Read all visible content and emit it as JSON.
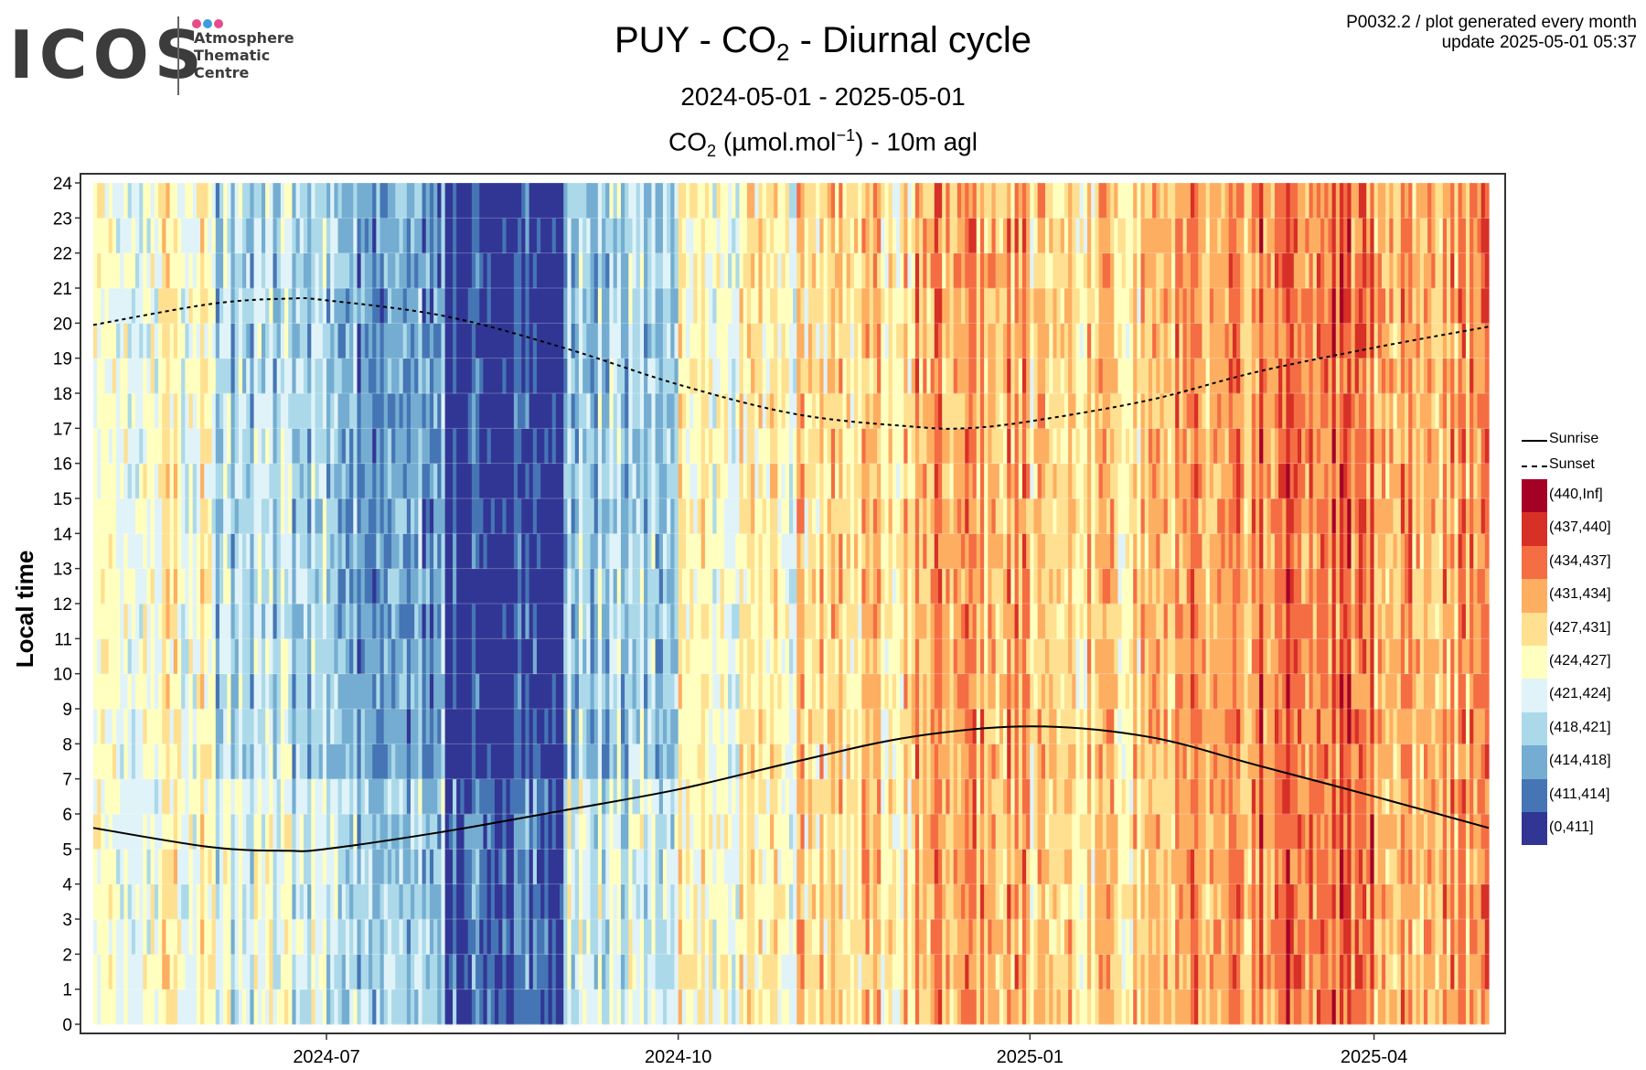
{
  "logo": {
    "text": "ICOS",
    "lines": [
      "Atmosphere",
      "Thematic",
      "Centre"
    ],
    "dot_colors": [
      "#e84a8a",
      "#3a9ee0",
      "#e84a8a"
    ]
  },
  "header": {
    "title": "PUY - CO2 - Diurnal cycle",
    "period": "2024-05-01 - 2025-05-01",
    "measure": "CO2 (µmol.mol-1) - 10m agl",
    "meta_line1": "P0032.2 / plot generated every month",
    "meta_line2": "update  2025-05-01 05:37"
  },
  "chart_data": {
    "type": "heatmap",
    "title": "PUY - CO2 - Diurnal cycle",
    "subtitle": "2024-05-01 - 2025-05-01",
    "xlabel": "",
    "ylabel": "Local time",
    "x_range": [
      "2024-05-01",
      "2025-05-01"
    ],
    "x_ticks": [
      "2024-07",
      "2024-10",
      "2025-01",
      "2025-04"
    ],
    "x_tick_dates": [
      "2024-07-01",
      "2024-10-01",
      "2025-01-01",
      "2025-04-01"
    ],
    "y_range": [
      0,
      24
    ],
    "y_ticks": [
      0,
      1,
      2,
      3,
      4,
      5,
      6,
      7,
      8,
      9,
      10,
      11,
      12,
      13,
      14,
      15,
      16,
      17,
      18,
      19,
      20,
      21,
      22,
      23,
      24
    ],
    "grid": true,
    "legend_position": "right",
    "classes": [
      {
        "label": "(440,Inf]",
        "color": "#a50026"
      },
      {
        "label": "(437,440]",
        "color": "#d73027"
      },
      {
        "label": "(434,437]",
        "color": "#f46d43"
      },
      {
        "label": "(431,434]",
        "color": "#fdae61"
      },
      {
        "label": "(427,431]",
        "color": "#fee090"
      },
      {
        "label": "(424,427]",
        "color": "#ffffbf"
      },
      {
        "label": "(421,424]",
        "color": "#e0f3f8"
      },
      {
        "label": "(418,421]",
        "color": "#abd9e9"
      },
      {
        "label": "(414,418]",
        "color": "#74add1"
      },
      {
        "label": "(411,414]",
        "color": "#4575b4"
      },
      {
        "label": "(0,411]",
        "color": "#313695"
      }
    ],
    "monthly_dominant_class": [
      {
        "month": "2024-05",
        "class": "(424,427]"
      },
      {
        "month": "2024-06",
        "class": "(418,421]"
      },
      {
        "month": "2024-07",
        "class": "(414,418]"
      },
      {
        "month": "2024-08",
        "class": "(0,411]"
      },
      {
        "month": "2024-09",
        "class": "(418,421]"
      },
      {
        "month": "2024-10",
        "class": "(424,427]"
      },
      {
        "month": "2024-11",
        "class": "(427,431]"
      },
      {
        "month": "2024-12",
        "class": "(431,434]"
      },
      {
        "month": "2025-01",
        "class": "(427,431]"
      },
      {
        "month": "2025-02",
        "class": "(431,434]"
      },
      {
        "month": "2025-03",
        "class": "(434,437]"
      },
      {
        "month": "2025-04",
        "class": "(431,434]"
      }
    ],
    "series": [
      {
        "name": "Sunrise",
        "style": "solid",
        "x": [
          "2024-05-01",
          "2024-06-01",
          "2024-06-21",
          "2024-07-01",
          "2024-08-01",
          "2024-09-01",
          "2024-10-01",
          "2024-11-01",
          "2024-12-01",
          "2025-01-01",
          "2025-02-01",
          "2025-03-01",
          "2025-04-01",
          "2025-05-01"
        ],
        "y": [
          5.6,
          5.05,
          4.95,
          5.0,
          5.5,
          6.1,
          6.7,
          7.5,
          8.2,
          8.5,
          8.2,
          7.4,
          6.5,
          5.6
        ]
      },
      {
        "name": "Sunset",
        "style": "dashed",
        "x": [
          "2024-05-01",
          "2024-06-01",
          "2024-06-21",
          "2024-07-01",
          "2024-08-01",
          "2024-09-01",
          "2024-10-01",
          "2024-11-01",
          "2024-12-01",
          "2024-12-15",
          "2025-01-01",
          "2025-02-01",
          "2025-03-01",
          "2025-04-01",
          "2025-05-01"
        ],
        "y": [
          19.95,
          20.55,
          20.7,
          20.65,
          20.2,
          19.3,
          18.25,
          17.4,
          17.05,
          17.0,
          17.2,
          17.8,
          18.6,
          19.3,
          19.9
        ]
      }
    ]
  }
}
